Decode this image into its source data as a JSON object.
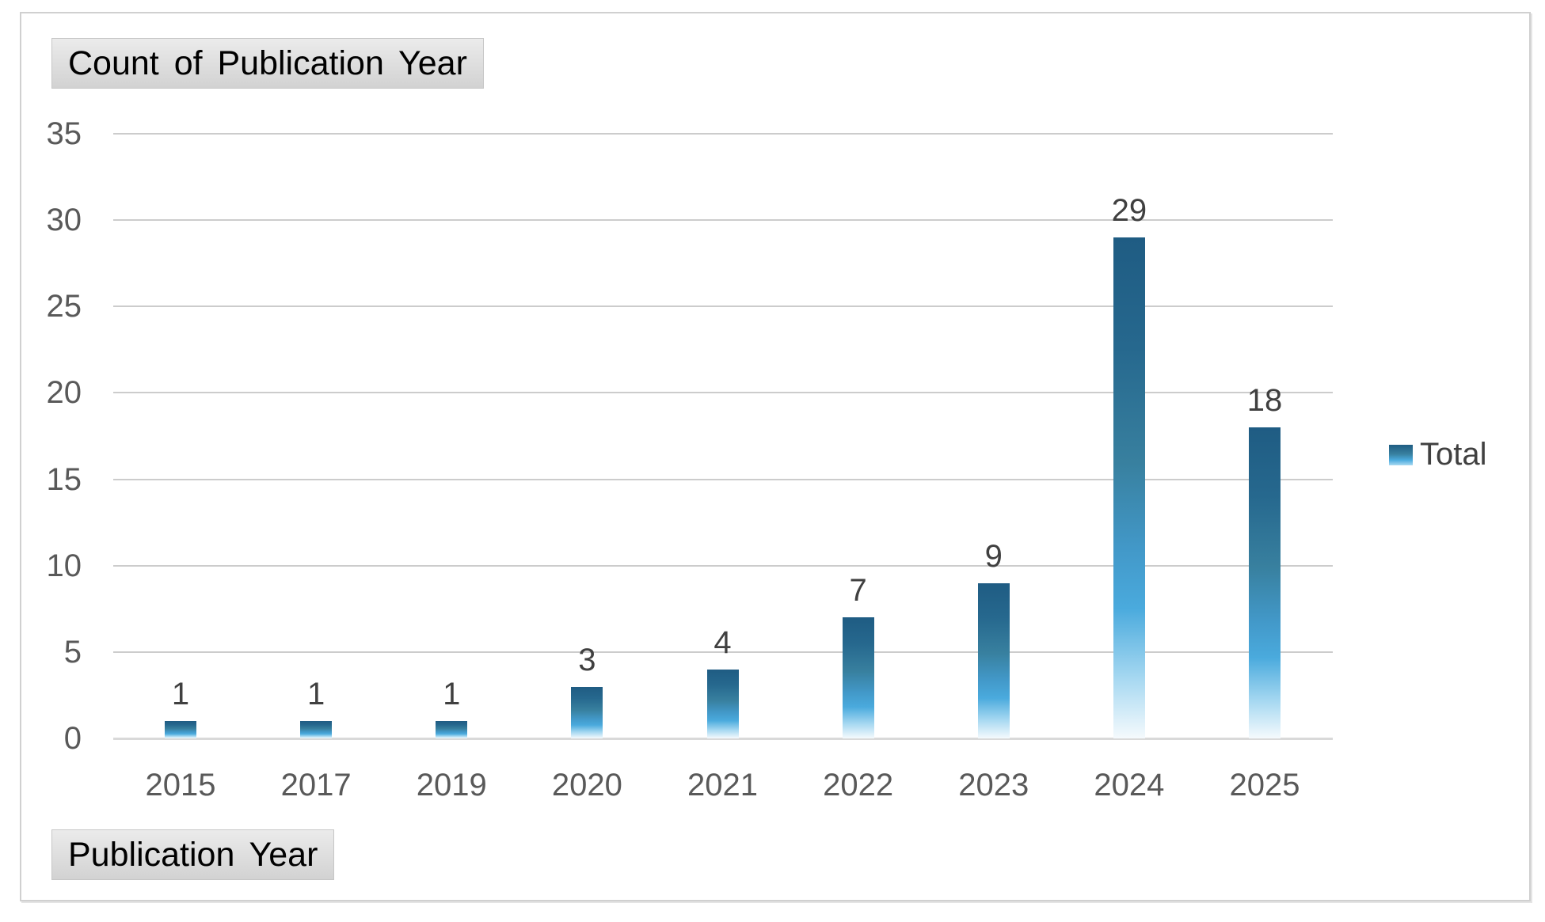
{
  "field_buttons": {
    "value_button": "Count of Publication Year",
    "axis_button": "Publication Year"
  },
  "legend": {
    "label": "Total"
  },
  "colors": {
    "bar_gradient_top": "#1f5c83",
    "bar_gradient_bright": "#4aaadd",
    "bar_gradient_bottom": "#f5fafd",
    "gridline": "#cccccc",
    "axis_line": "#d9d9d9",
    "tick_text": "#595959",
    "data_label_text": "#404040",
    "button_text": "#000000",
    "frame_border": "#d0d0d0"
  },
  "chart_data": {
    "type": "bar",
    "title": "Count of Publication Year",
    "xlabel": "Publication Year",
    "ylabel": "",
    "categories": [
      "2015",
      "2017",
      "2019",
      "2020",
      "2021",
      "2022",
      "2023",
      "2024",
      "2025"
    ],
    "series": [
      {
        "name": "Total",
        "values": [
          1,
          1,
          1,
          3,
          4,
          7,
          9,
          29,
          18
        ]
      }
    ],
    "data_labels_shown": true,
    "ylim": [
      0,
      35
    ],
    "yticks": [
      0,
      5,
      10,
      15,
      20,
      25,
      30,
      35
    ],
    "grid": true,
    "legend_position": "right"
  }
}
